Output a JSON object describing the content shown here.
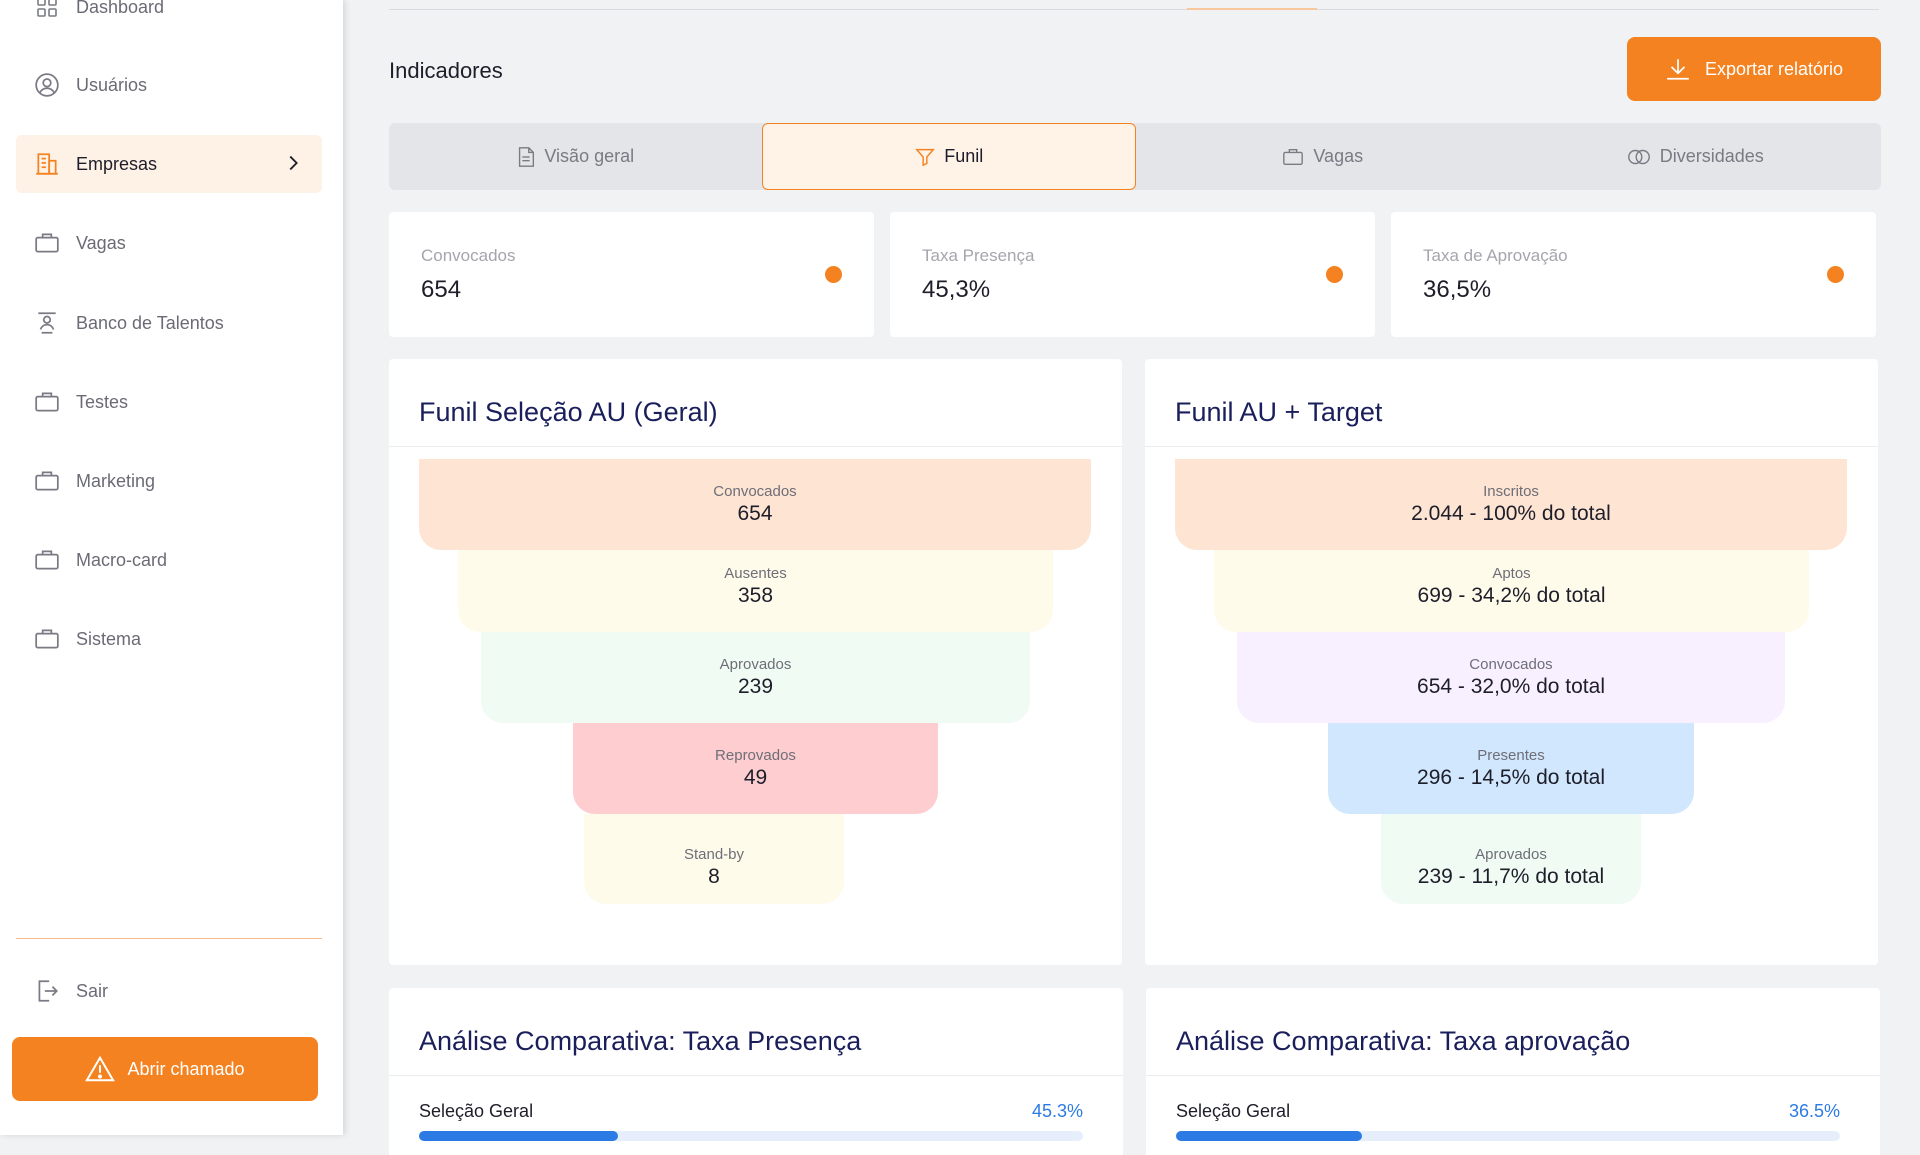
{
  "sidebar": {
    "items": [
      {
        "label": "Dashboard",
        "icon": "grid-icon"
      },
      {
        "label": "Usuários",
        "icon": "user-circle-icon"
      },
      {
        "label": "Empresas",
        "icon": "building-icon",
        "active": true
      },
      {
        "label": "Vagas",
        "icon": "briefcase-icon"
      },
      {
        "label": "Banco de Talentos",
        "icon": "talent-icon"
      },
      {
        "label": "Testes",
        "icon": "briefcase-icon"
      },
      {
        "label": "Marketing",
        "icon": "briefcase-icon"
      },
      {
        "label": "Macro-card",
        "icon": "briefcase-icon"
      },
      {
        "label": "Sistema",
        "icon": "briefcase-icon"
      }
    ],
    "logout_label": "Sair",
    "ticket_button": "Abrir chamado"
  },
  "header": {
    "title": "Indicadores",
    "export_button": "Exportar relatório"
  },
  "tabs": [
    {
      "label": "Visão geral",
      "icon": "document-icon"
    },
    {
      "label": "Funil",
      "icon": "filter-icon",
      "active": true
    },
    {
      "label": "Vagas",
      "icon": "briefcase-icon"
    },
    {
      "label": "Diversidades",
      "icon": "rings-icon"
    }
  ],
  "kpis": [
    {
      "label": "Convocados",
      "value": "654"
    },
    {
      "label": "Taxa Presença",
      "value": "45,3%"
    },
    {
      "label": "Taxa de Aprovação",
      "value": "36,5%"
    }
  ],
  "funnel_geral": {
    "title": "Funil Seleção AU (Geral)",
    "stages": [
      {
        "label": "Convocados",
        "value": "654"
      },
      {
        "label": "Ausentes",
        "value": "358"
      },
      {
        "label": "Aprovados",
        "value": "239"
      },
      {
        "label": "Reprovados",
        "value": "49"
      },
      {
        "label": "Stand-by",
        "value": "8"
      }
    ]
  },
  "funnel_target": {
    "title": "Funil AU + Target",
    "stages": [
      {
        "label": "Inscritos",
        "value": "2.044 - 100% do total"
      },
      {
        "label": "Aptos",
        "value": "699 - 34,2% do total"
      },
      {
        "label": "Convocados",
        "value": "654 - 32,0% do total"
      },
      {
        "label": "Presentes",
        "value": "296 - 14,5% do total"
      },
      {
        "label": "Aprovados",
        "value": "239 - 11,7% do total"
      }
    ]
  },
  "comparative_presence": {
    "title": "Análise Comparativa: Taxa Presença",
    "rows": [
      {
        "label": "Seleção Geral",
        "value_text": "45.3%",
        "fraction": 0.3
      }
    ]
  },
  "comparative_approval": {
    "title": "Análise Comparativa: Taxa aprovação",
    "rows": [
      {
        "label": "Seleção Geral",
        "value_text": "36.5%",
        "fraction": 0.28
      }
    ]
  },
  "colors": {
    "accent": "#f58220",
    "title_navy": "#1a1f5c",
    "progress_blue": "#2c7be5"
  }
}
